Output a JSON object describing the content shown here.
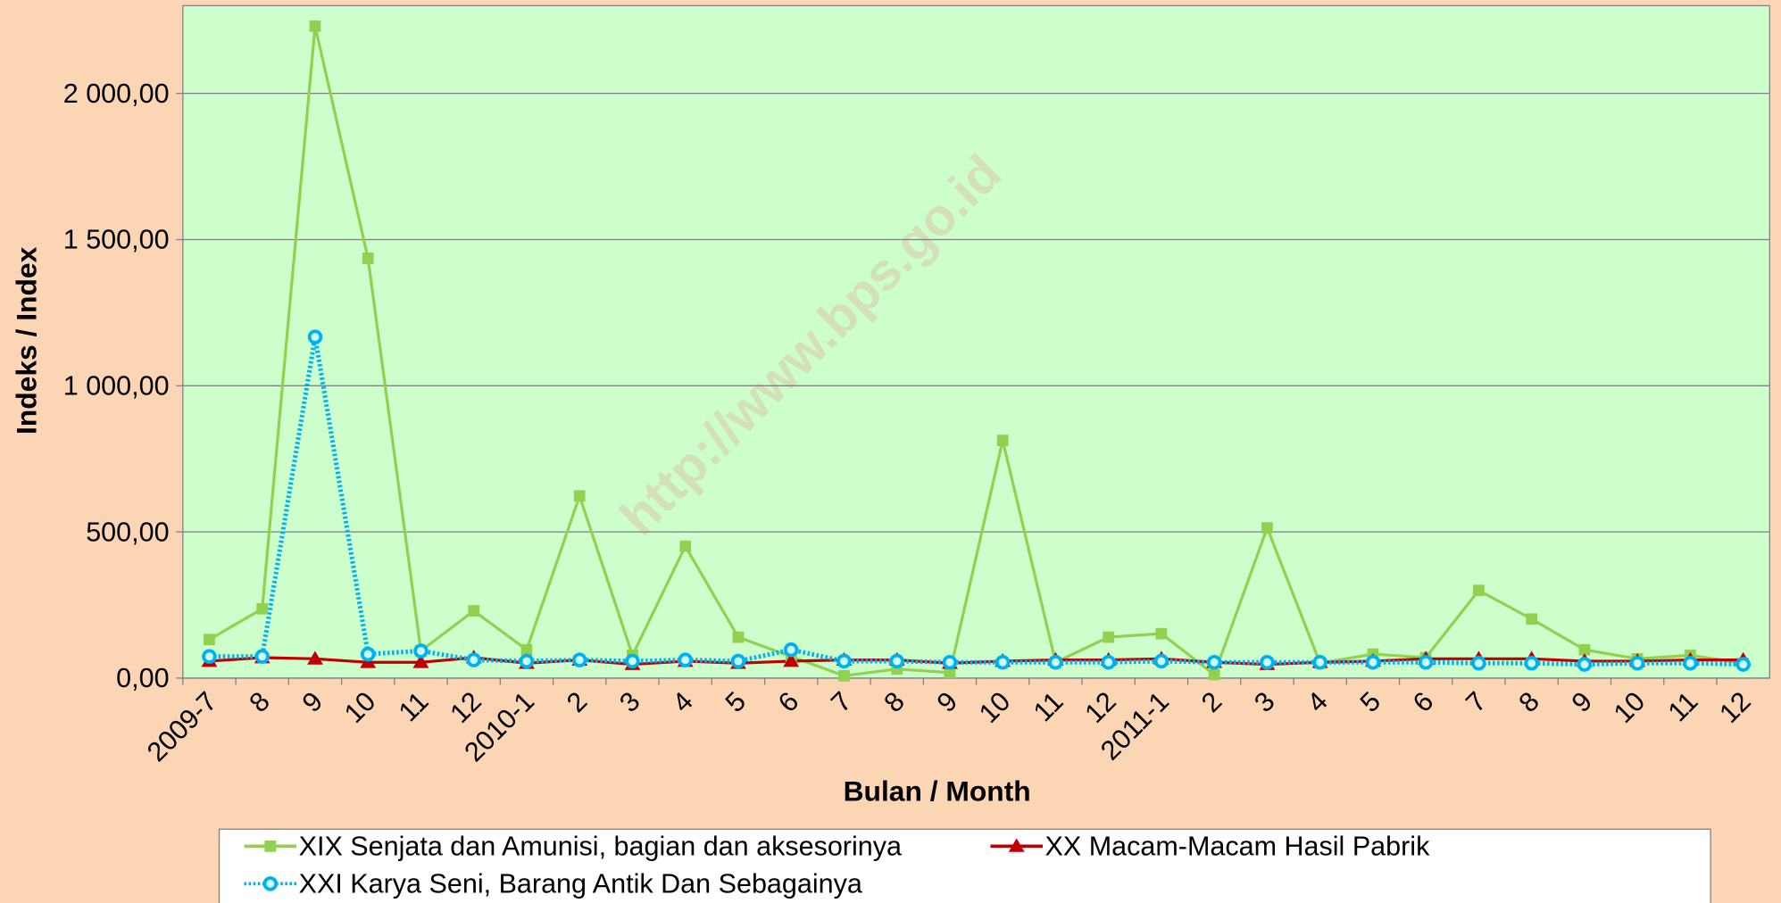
{
  "chart_data": {
    "type": "line",
    "watermark": "http://www.bps.go.id",
    "xlabel": "Bulan / Month",
    "ylabel": "Indeks / Index",
    "categories": [
      "2009-7",
      "8",
      "9",
      "10",
      "11",
      "12",
      "2010-1",
      "2",
      "3",
      "4",
      "5",
      "6",
      "7",
      "8",
      "9",
      "10",
      "11",
      "12",
      "2011-1",
      "2",
      "3",
      "4",
      "5",
      "6",
      "7",
      "8",
      "9",
      "10",
      "11",
      "12"
    ],
    "ylim": [
      0,
      2300
    ],
    "yticks": [
      {
        "value": 0,
        "label": "0,00"
      },
      {
        "value": 500,
        "label": "500,00"
      },
      {
        "value": 1000,
        "label": "1 000,00"
      },
      {
        "value": 1500,
        "label": "1 500,00"
      },
      {
        "value": 2000,
        "label": "2 000,00"
      }
    ],
    "grid": true,
    "legend": "bottom",
    "series": [
      {
        "name": "XIX Senjata dan Amunisi, bagian dan aksesorinya",
        "color": "#92d050",
        "marker": "square",
        "dash": "solid",
        "values": [
          132,
          237,
          2230,
          1436,
          93,
          230,
          97,
          623,
          78,
          451,
          140,
          74,
          8,
          31,
          19,
          813,
          54,
          140,
          152,
          12,
          514,
          51,
          82,
          70,
          300,
          202,
          97,
          66,
          78,
          51
        ]
      },
      {
        "name": "XX Macam-Macam Hasil Pabrik",
        "color": "#c00000",
        "marker": "triangle",
        "dash": "solid",
        "values": [
          58,
          70,
          66,
          54,
          54,
          70,
          51,
          62,
          47,
          58,
          51,
          58,
          62,
          62,
          51,
          58,
          62,
          62,
          66,
          54,
          47,
          54,
          58,
          66,
          66,
          66,
          58,
          58,
          62,
          62
        ]
      },
      {
        "name": "XXI Karya Seni, Barang Antik Dan Sebagainya",
        "color": "#00b0f0",
        "marker": "circle",
        "dash": "dotted",
        "values": [
          74,
          74,
          1167,
          82,
          93,
          62,
          58,
          62,
          58,
          62,
          58,
          97,
          58,
          58,
          54,
          54,
          54,
          54,
          58,
          54,
          54,
          54,
          54,
          54,
          51,
          51,
          47,
          51,
          51,
          47
        ]
      }
    ]
  }
}
